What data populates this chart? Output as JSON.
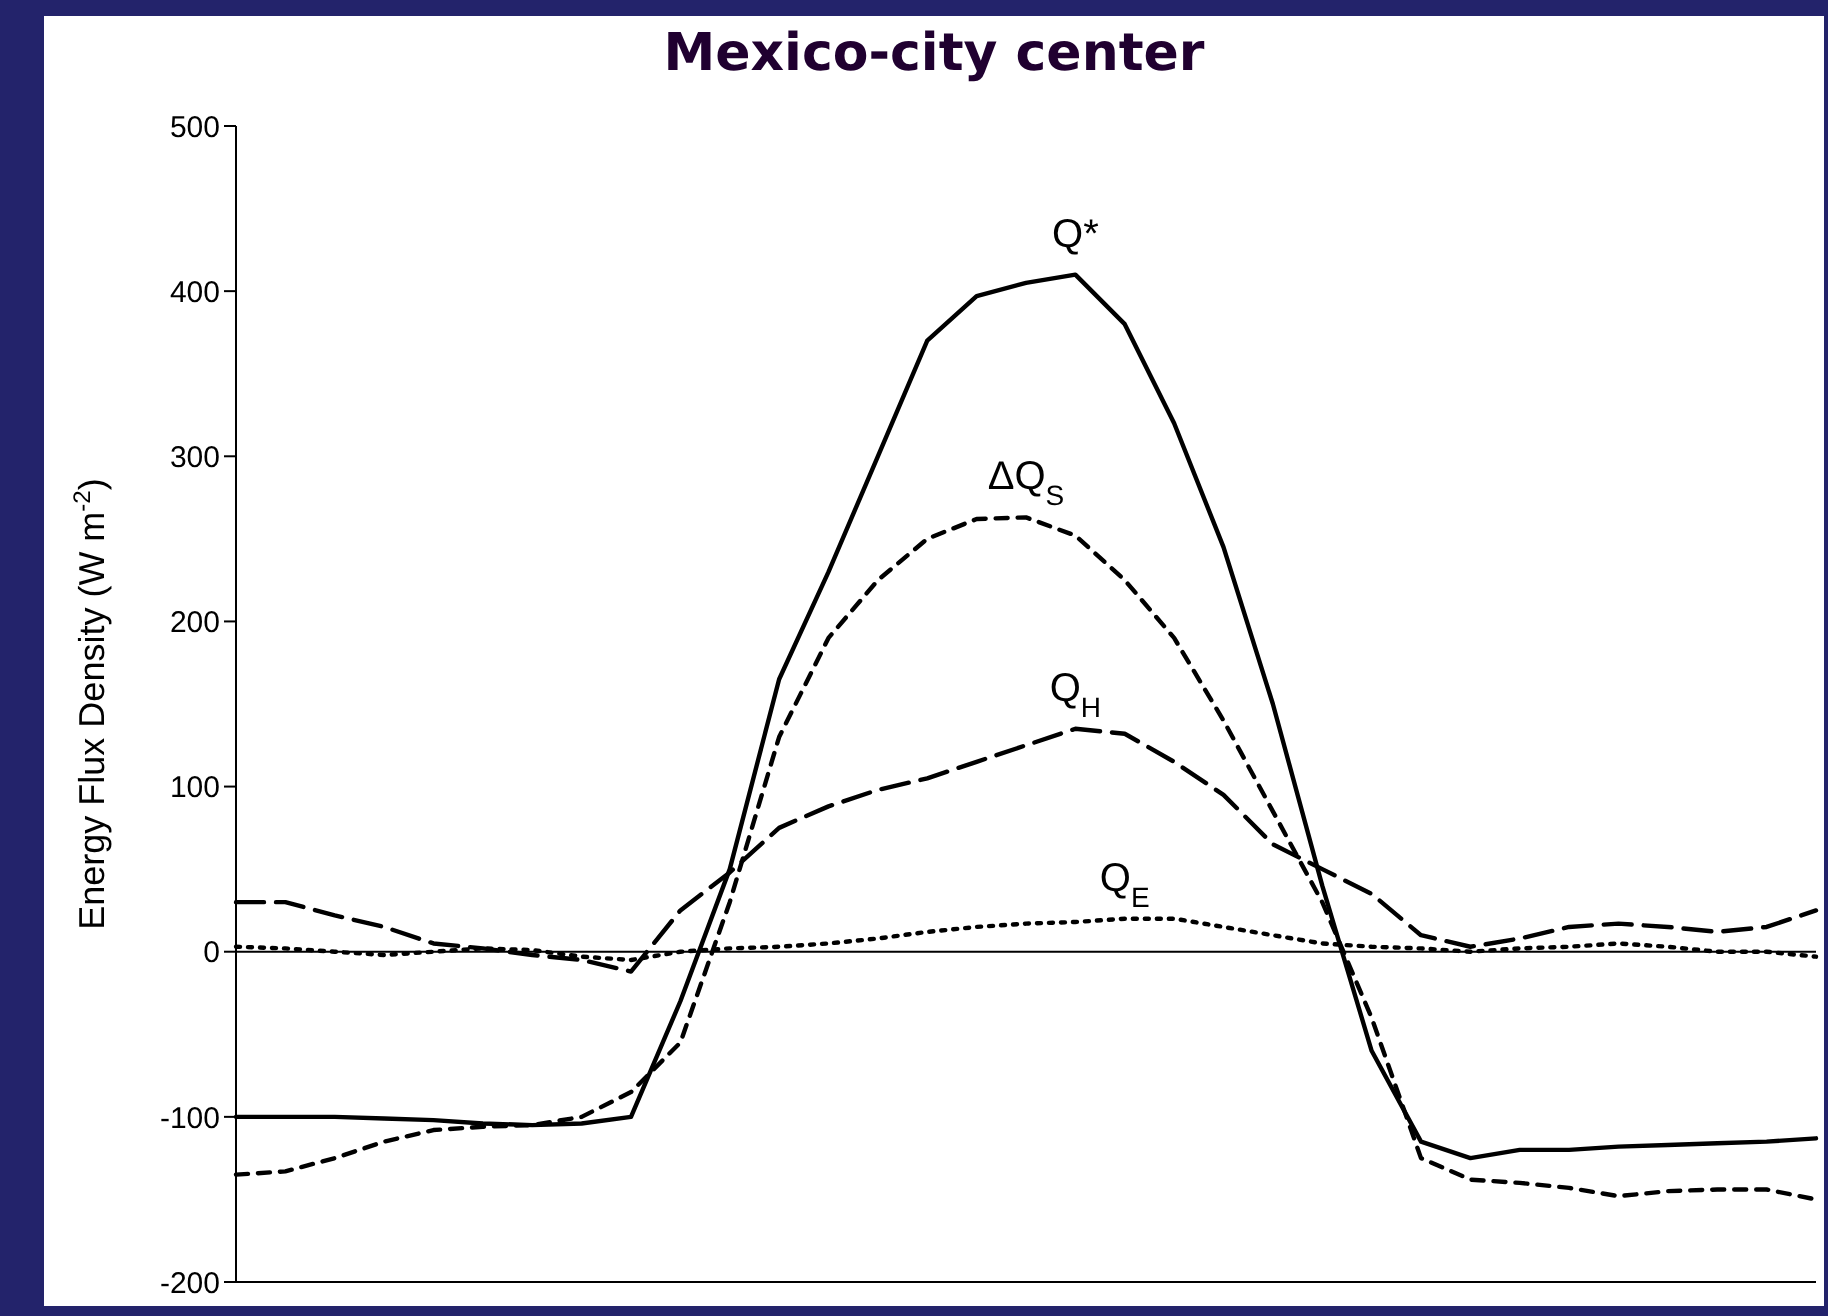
{
  "chart_data": {
    "type": "line",
    "title": "Mexico-city center",
    "ylabel": "Energy Flux Density (W m$^{-2}$)",
    "categories": [
      null,
      null,
      null,
      null,
      null,
      null,
      null,
      null,
      null,
      null,
      null,
      null,
      null,
      null,
      null,
      null,
      null,
      null,
      null,
      null,
      null,
      null,
      null,
      null,
      null,
      null,
      null,
      null,
      null,
      null,
      null,
      null,
      null
    ],
    "series": [
      {
        "name": "Q*",
        "color": "#000000",
        "line_style": "solid",
        "values": [
          -100,
          -100,
          -100,
          -101,
          -102,
          -104,
          -105,
          -104,
          -100,
          -30,
          50,
          165,
          230,
          300,
          370,
          397,
          405,
          410,
          380,
          320,
          245,
          150,
          40,
          -60,
          -115,
          -125,
          -120,
          -120,
          -118,
          -117,
          -116,
          -115,
          -113
        ]
      },
      {
        "name": "ΔQ$_{S}$",
        "color": "#000000",
        "line_style": "dashed",
        "values": [
          -135,
          -133,
          -125,
          -115,
          -108,
          -106,
          -105,
          -100,
          -85,
          -55,
          30,
          130,
          190,
          225,
          250,
          262,
          263,
          252,
          225,
          190,
          140,
          85,
          30,
          -40,
          -125,
          -138,
          -140,
          -143,
          -148,
          -145,
          -144,
          -144,
          -150
        ]
      },
      {
        "name": "Q$_{H}$",
        "color": "#000000",
        "line_style": "dashed",
        "values": [
          30,
          30,
          22,
          15,
          5,
          2,
          -2,
          -5,
          -12,
          25,
          48,
          75,
          88,
          98,
          105,
          115,
          125,
          135,
          132,
          115,
          95,
          65,
          50,
          35,
          10,
          3,
          8,
          15,
          17,
          15,
          12,
          15,
          25
        ]
      },
      {
        "name": "Q$_{E}$",
        "color": "#000000",
        "line_style": "dotted",
        "values": [
          3,
          2,
          0,
          -2,
          0,
          2,
          1,
          -3,
          -5,
          0,
          2,
          3,
          5,
          8,
          12,
          15,
          17,
          18,
          20,
          20,
          15,
          10,
          5,
          3,
          2,
          0,
          2,
          3,
          5,
          3,
          0,
          0,
          -3
        ]
      }
    ],
    "ylim": [
      -200,
      500
    ],
    "yticks": [
      -200,
      -100,
      0,
      100,
      200,
      300,
      400,
      500
    ],
    "ref_lines": [
      {
        "axis": "y",
        "value": 0,
        "color": "#000000",
        "line_style": "solid"
      }
    ],
    "tick_labels": "y",
    "grid": false,
    "legend": false,
    "marker": "none"
  }
}
